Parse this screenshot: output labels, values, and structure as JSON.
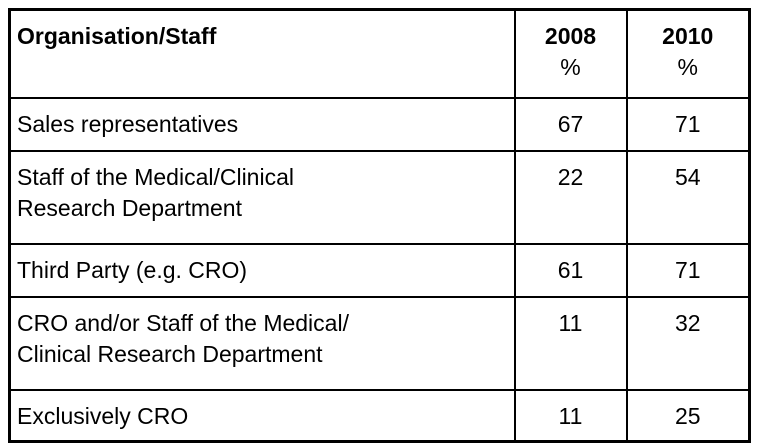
{
  "chart_data": {
    "type": "table",
    "title": "",
    "columns": [
      "Organisation/Staff",
      "2008 %",
      "2010 %"
    ],
    "header": {
      "organisation_label": "Organisation/Staff",
      "col_2008": {
        "year": "2008",
        "unit": "%"
      },
      "col_2010": {
        "year": "2010",
        "unit": "%"
      }
    },
    "rows": [
      {
        "label": "Sales representatives",
        "pct_2008": "67",
        "pct_2010": "71"
      },
      {
        "label": "Staff of the Medical/Clinical\nResearch Department",
        "pct_2008": "22",
        "pct_2010": "54"
      },
      {
        "label": "Third Party (e.g. CRO)",
        "pct_2008": "61",
        "pct_2010": "71"
      },
      {
        "label": "CRO and/or Staff of the Medical/\nClinical Research Department",
        "pct_2008": "11",
        "pct_2010": "32"
      },
      {
        "label": "Exclusively CRO",
        "pct_2008": "11",
        "pct_2010": "25"
      }
    ],
    "layout": {
      "grid": "all-borders",
      "outer_border_px": 3,
      "inner_border_px": 2
    },
    "colors": {
      "border": "#000000",
      "text": "#000000",
      "background": "#ffffff"
    }
  }
}
